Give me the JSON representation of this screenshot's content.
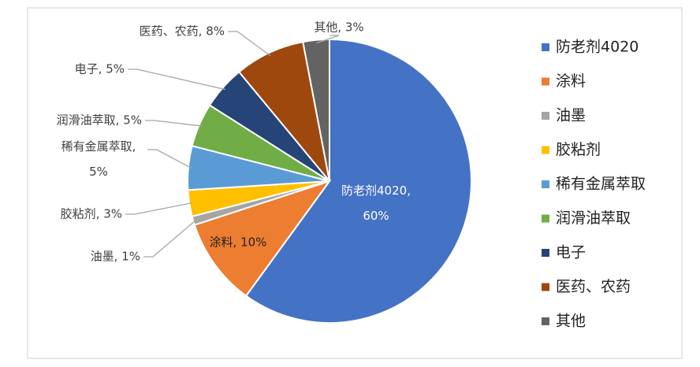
{
  "chart_data": {
    "type": "pie",
    "categories": [
      "防老剂4020",
      "涂料",
      "油墨",
      "胶粘剂",
      "稀有金属萃取",
      "润滑油萃取",
      "电子",
      "医药、农药",
      "其他"
    ],
    "values": [
      60,
      10,
      1,
      3,
      5,
      5,
      5,
      8,
      3
    ],
    "value_labels": [
      "防老剂4020, 60%",
      "涂料, 10%",
      "油墨, 1%",
      "胶粘剂, 3%",
      "稀有金属萃取, 5%",
      "润滑油萃取, 5%",
      "电子, 5%",
      "医药、农药, 8%",
      "其他, 3%"
    ],
    "colors": [
      "#4472c4",
      "#ed7d31",
      "#a5a5a5",
      "#ffc000",
      "#5b9bd5",
      "#70ad47",
      "#264478",
      "#9e480e",
      "#636363"
    ],
    "legend": "right"
  }
}
